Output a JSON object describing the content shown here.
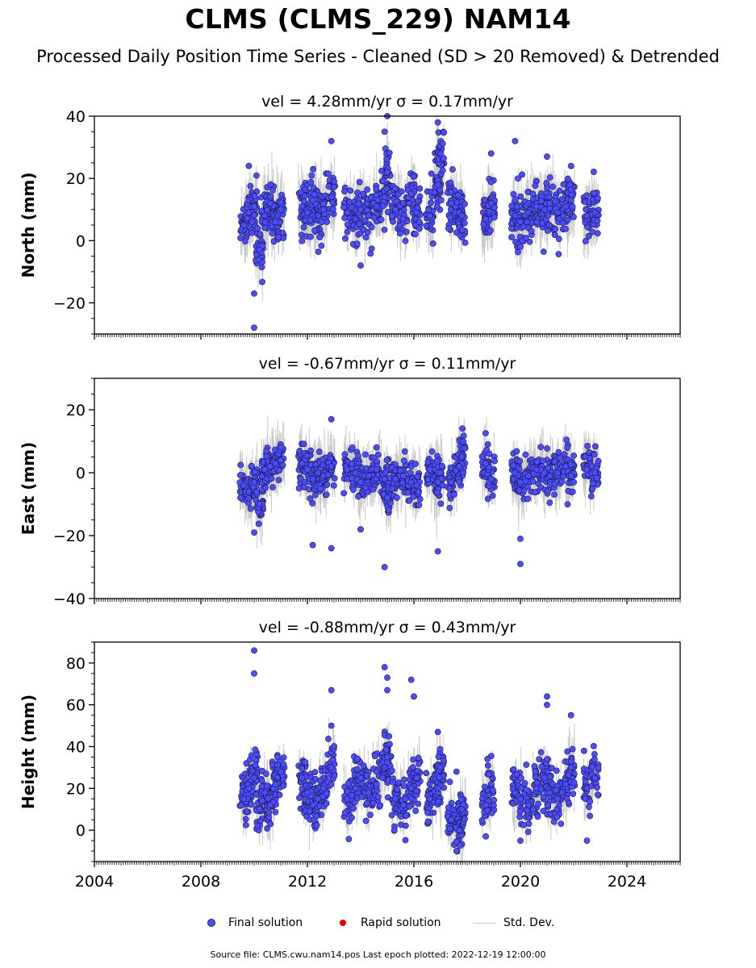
{
  "title": "CLMS (CLMS_229) NAM14",
  "subtitle": "Processed Daily Position Time Series - Cleaned (SD > 20 Removed) & Detrended",
  "legend": {
    "final": "Final solution",
    "rapid": "Rapid solution",
    "std": "Std. Dev."
  },
  "source": "Source file: CLMS.cwu.nam14.pos  Last epoch plotted: 2022-12-19 12:00:00",
  "colors": {
    "final": "#4c4cff",
    "rapid": "#e00000",
    "std_dev": "#c8c8c8"
  },
  "chart_data": [
    {
      "type": "scatter",
      "component": "north",
      "title": "vel = 4.28mm/yr   σ = 0.17mm/yr",
      "ylabel": "North (mm)",
      "xlim": [
        2004,
        2026
      ],
      "ylim": [
        -30,
        40
      ],
      "yticks": [
        -20,
        0,
        20,
        40
      ],
      "ytick_labels": [
        "−20",
        "0",
        "20",
        "40"
      ],
      "x_tick_labels_shown": false,
      "grid": false,
      "series": [
        {
          "name": "Final solution",
          "x": [
            2009.6,
            2009.8,
            2010.0,
            2010.2,
            2010.4,
            2010.6,
            2010.8,
            2011.0,
            2011.8,
            2012.0,
            2012.2,
            2012.4,
            2012.6,
            2012.9,
            2013.5,
            2013.8,
            2014.0,
            2014.3,
            2014.6,
            2014.9,
            2015.0,
            2015.3,
            2015.6,
            2015.9,
            2016.1,
            2016.6,
            2016.9,
            2017.0,
            2017.4,
            2017.7,
            2017.8,
            2018.7,
            2018.9,
            2019.8,
            2020.0,
            2020.3,
            2020.6,
            2020.9,
            2021.1,
            2021.4,
            2021.7,
            2021.9,
            2022.5,
            2022.8
          ],
          "y": [
            5,
            9,
            11,
            -3,
            8,
            12,
            6,
            10,
            11,
            9,
            13,
            8,
            10,
            14,
            9,
            7,
            10,
            8,
            11,
            14,
            22,
            10,
            7,
            15,
            9,
            8,
            18,
            28,
            12,
            9,
            8,
            7,
            12,
            8,
            6,
            9,
            11,
            10,
            12,
            9,
            11,
            13,
            8,
            9
          ],
          "outliers_x": [
            2009.8,
            2010.0,
            2010.0,
            2012.9,
            2014.0,
            2014.9,
            2015.0,
            2016.9,
            2018.9,
            2019.8,
            2020.0,
            2021.0,
            2021.9
          ],
          "outliers_y": [
            24,
            -17,
            -28,
            32,
            -8,
            35,
            40,
            38,
            28,
            32,
            -2,
            27,
            24
          ]
        }
      ]
    },
    {
      "type": "scatter",
      "component": "east",
      "title": "vel = -0.67mm/yr   σ = 0.11mm/yr",
      "ylabel": "East (mm)",
      "xlim": [
        2004,
        2026
      ],
      "ylim": [
        -40,
        30
      ],
      "yticks": [
        -40,
        -20,
        0,
        20
      ],
      "ytick_labels": [
        "−40",
        "−20",
        "0",
        "20"
      ],
      "x_tick_labels_shown": false,
      "grid": false,
      "series": [
        {
          "name": "Final solution",
          "x": [
            2009.6,
            2009.8,
            2010.0,
            2010.2,
            2010.4,
            2010.6,
            2010.8,
            2011.0,
            2011.8,
            2012.0,
            2012.2,
            2012.4,
            2012.6,
            2012.9,
            2013.5,
            2013.8,
            2014.0,
            2014.3,
            2014.6,
            2014.9,
            2015.0,
            2015.3,
            2015.6,
            2015.9,
            2016.1,
            2016.6,
            2016.9,
            2017.0,
            2017.4,
            2017.7,
            2017.8,
            2018.7,
            2018.9,
            2019.8,
            2020.0,
            2020.3,
            2020.6,
            2020.9,
            2021.1,
            2021.4,
            2021.7,
            2021.9,
            2022.5,
            2022.8
          ],
          "y": [
            -4,
            -6,
            -3,
            -10,
            1,
            2,
            3,
            4,
            3,
            1,
            -2,
            0,
            -1,
            2,
            1,
            0,
            -3,
            -1,
            1,
            -2,
            -8,
            -2,
            -1,
            -3,
            -4,
            1,
            -3,
            0,
            -3,
            2,
            5,
            3,
            -2,
            0,
            -3,
            -1,
            1,
            0,
            -1,
            0,
            2,
            -1,
            1,
            0
          ],
          "outliers_x": [
            2010.0,
            2012.2,
            2012.9,
            2012.9,
            2014.0,
            2014.9,
            2016.9,
            2020.0,
            2020.0
          ],
          "outliers_y": [
            -19,
            -23,
            17,
            -24,
            -18,
            -30,
            -25,
            -21,
            -29
          ]
        }
      ]
    },
    {
      "type": "scatter",
      "component": "height",
      "title": "vel = -0.88mm/yr   σ = 0.43mm/yr",
      "ylabel": "Height (mm)",
      "xlim": [
        2004,
        2026
      ],
      "ylim": [
        -15,
        90
      ],
      "yticks": [
        0,
        20,
        40,
        60,
        80
      ],
      "ytick_labels": [
        "0",
        "20",
        "40",
        "60",
        "80"
      ],
      "xticks": [
        2004,
        2008,
        2012,
        2016,
        2020,
        2024
      ],
      "xtick_labels": [
        "2004",
        "2008",
        "2012",
        "2016",
        "2020",
        "2024"
      ],
      "grid": false,
      "series": [
        {
          "name": "Final solution",
          "x": [
            2009.6,
            2009.8,
            2010.0,
            2010.2,
            2010.4,
            2010.6,
            2010.8,
            2011.0,
            2011.8,
            2012.0,
            2012.2,
            2012.4,
            2012.6,
            2012.9,
            2013.5,
            2013.8,
            2014.0,
            2014.3,
            2014.6,
            2014.9,
            2015.0,
            2015.3,
            2015.6,
            2015.9,
            2016.1,
            2016.6,
            2016.9,
            2017.0,
            2017.4,
            2017.7,
            2017.8,
            2018.7,
            2018.9,
            2019.8,
            2020.0,
            2020.3,
            2020.6,
            2020.9,
            2021.1,
            2021.4,
            2021.7,
            2021.9,
            2022.5,
            2022.8
          ],
          "y": [
            15,
            20,
            25,
            10,
            18,
            12,
            22,
            28,
            25,
            18,
            12,
            15,
            20,
            30,
            15,
            20,
            25,
            18,
            22,
            30,
            35,
            15,
            12,
            20,
            25,
            15,
            20,
            30,
            5,
            0,
            10,
            12,
            22,
            18,
            15,
            12,
            20,
            25,
            18,
            15,
            22,
            30,
            20,
            25
          ],
          "outliers_x": [
            2010.0,
            2010.0,
            2012.9,
            2012.9,
            2014.9,
            2015.0,
            2015.0,
            2015.9,
            2016.0,
            2016.9,
            2017.6,
            2017.6,
            2018.7,
            2020.0,
            2021.0,
            2021.0,
            2021.9,
            2022.5
          ],
          "outliers_y": [
            86,
            75,
            67,
            50,
            78,
            73,
            67,
            72,
            64,
            47,
            -10,
            28,
            -3,
            -5,
            64,
            60,
            55,
            -5
          ]
        }
      ]
    }
  ]
}
